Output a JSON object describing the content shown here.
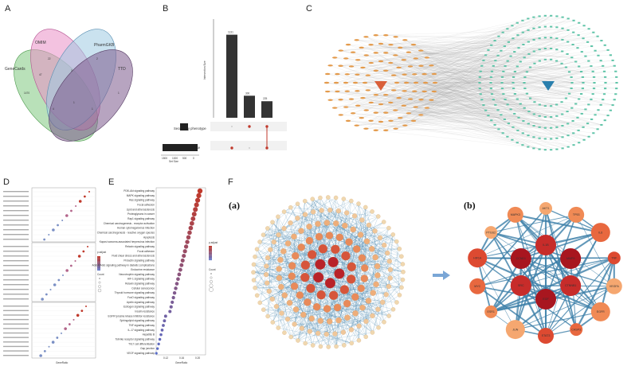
{
  "panels": {
    "a": "A",
    "b": "B",
    "c": "C",
    "d": "D",
    "e": "E",
    "f": "F",
    "sub_a": "(a)",
    "sub_b": "(b)"
  },
  "venn": {
    "sets": [
      "GeneCards",
      "OMIM",
      "PharmGKB",
      "TTD"
    ],
    "counts": [
      "1470",
      "22",
      "2",
      "1",
      "47",
      "3",
      "1",
      "4",
      "1"
    ],
    "colors": [
      "#7fc97f",
      "#e98fc7",
      "#9ecae1",
      "#7b5a8c"
    ]
  },
  "upset": {
    "bar_values": [
      1131,
      300,
      225
    ],
    "bar_labels": [
      "1131",
      "300",
      "225"
    ],
    "ylabel": "Intersection Size",
    "set_names": [
      "Secondary phenotype",
      "Disease"
    ],
    "set_sizes": [
      1400,
      300
    ],
    "set_size_label": "Set Size",
    "set_ticks": [
      "1500",
      "1000",
      "500",
      "0"
    ],
    "colors": {
      "bar": "#333333",
      "matrix_dot": "#c0392b",
      "set_bar": "#222222"
    }
  },
  "network_c": {
    "left_color": "#e39a4b",
    "center_left_color": "#d9603b",
    "right_color": "#5fc4a8",
    "center_right_color": "#2a7fad",
    "edge_color": "#9a9a9a"
  },
  "enrichment_d": {
    "colorbar_title": "p.adjust",
    "size_title": "Count",
    "dot_color": "#c0392b",
    "xlabel": "GeneRatio"
  },
  "enrichment_e": {
    "pathways": [
      "PI3K-Akt signaling pathway",
      "MAPK signaling pathway",
      "Ras signaling pathway",
      "Focal adhesion",
      "Lipid and atherosclerosis",
      "Proteoglycans in cancer",
      "Rap1 signaling pathway",
      "Chemical carcinogenesis - receptor activation",
      "Human cytomegalovirus infection",
      "Chemical carcinogenesis - reactive oxygen species",
      "Apoptosis",
      "Kaposi sarcoma-associated herpesvirus infection",
      "Relaxin signaling pathway",
      "Focal adhesion",
      "Fluid shear stress and atherosclerosis",
      "Prolactin signaling pathway",
      "AGE-RAGE signaling pathway in diabetic complications",
      "Endocrine resistance",
      "Neurotrophin signaling pathway",
      "HIF-1 signaling pathway",
      "Relaxin signaling pathway",
      "Cellular senescence",
      "Thyroid hormone signaling pathway",
      "FoxO signaling pathway",
      "Apelin signaling pathway",
      "Estrogen signaling pathway",
      "Insulin resistance",
      "EGFR tyrosine kinase inhibitor resistance",
      "Sphingolipid signaling pathway",
      "TNF signaling pathway",
      "IL-17 signaling pathway",
      "Hepatitis B",
      "Toll-like receptor signaling pathway",
      "Th17 cell differentiation",
      "Gap junction",
      "VEGF signaling pathway"
    ],
    "x_ticks": [
      "0.12",
      "0.16",
      "0.20"
    ],
    "xlabel": "GeneRatio",
    "colorbar_title": "p.adjust",
    "size_title": "Count",
    "dot_color": "#c0392b"
  },
  "ppi": {
    "hub_nodes": [
      "AKT1",
      "TP53",
      "IL6",
      "TNF",
      "VEGFA",
      "EGFR",
      "CASP3",
      "STAT3",
      "JUN",
      "ESR1",
      "MYC",
      "HIF1A",
      "PTGS2",
      "MAPK3",
      "IL1B",
      "MMP9",
      "CTNNB1",
      "EGF",
      "SRC",
      "CCND1"
    ],
    "arrow_color": "#7aa6d6",
    "edge_color": "#3b7ea8"
  }
}
